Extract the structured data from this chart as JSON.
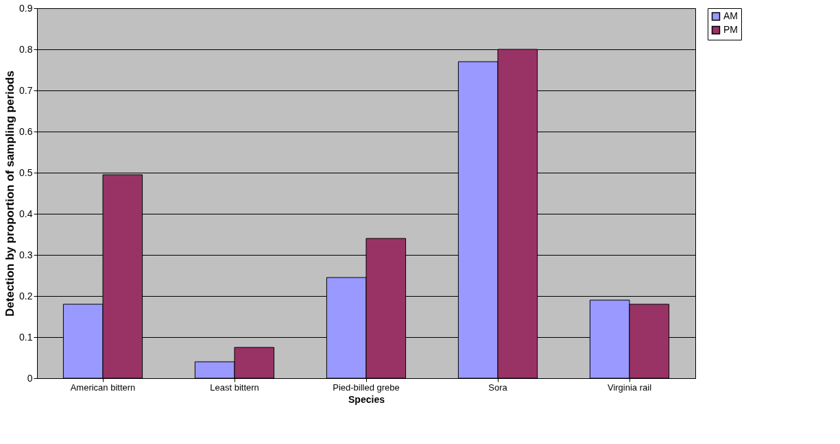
{
  "chart_data": {
    "type": "bar",
    "xlabel": "Species",
    "ylabel": "Detection by proportion of sampling periods",
    "categories": [
      "American bittern",
      "Least bittern",
      "Pied-billed grebe",
      "Sora",
      "Virginia rail"
    ],
    "series": [
      {
        "name": "AM",
        "color": "#9999ff",
        "values": [
          0.18,
          0.04,
          0.245,
          0.77,
          0.19
        ]
      },
      {
        "name": "PM",
        "color": "#993366",
        "values": [
          0.495,
          0.075,
          0.34,
          0.8,
          0.18
        ]
      }
    ],
    "ylim": [
      0,
      0.9
    ],
    "yticks": [
      0,
      0.1,
      0.2,
      0.3,
      0.4,
      0.5,
      0.6,
      0.7,
      0.8,
      0.9
    ],
    "grid": "y",
    "legend": "right"
  }
}
